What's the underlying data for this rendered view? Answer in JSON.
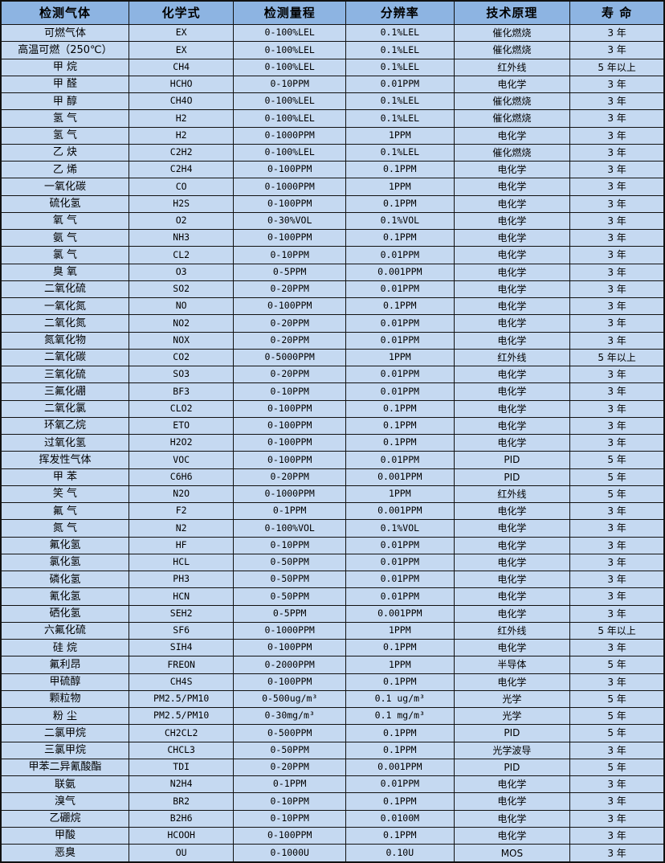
{
  "colors": {
    "header_bg": "#8DB4E2",
    "row_bg": "#C5D9F1",
    "border": "#111111"
  },
  "table": {
    "headers": [
      "检测气体",
      "化学式",
      "检测量程",
      "分辨率",
      "技术原理",
      "寿 命"
    ],
    "rows": [
      [
        "可燃气体",
        "EX",
        "0-100%LEL",
        "0.1%LEL",
        "催化燃烧",
        "3 年"
      ],
      [
        "高温可燃（250℃）",
        "EX",
        "0-100%LEL",
        "0.1%LEL",
        "催化燃烧",
        "3 年"
      ],
      [
        "甲 烷",
        "CH4",
        "0-100%LEL",
        "0.1%LEL",
        "红外线",
        "5 年以上"
      ],
      [
        "甲 醛",
        "HCHO",
        "0-10PPM",
        "0.01PPM",
        "电化学",
        "3 年"
      ],
      [
        "甲 醇",
        "CH4O",
        "0-100%LEL",
        "0.1%LEL",
        "催化燃烧",
        "3 年"
      ],
      [
        "氢 气",
        "H2",
        "0-100%LEL",
        "0.1%LEL",
        "催化燃烧",
        "3 年"
      ],
      [
        "氢 气",
        "H2",
        "0-1000PPM",
        "1PPM",
        "电化学",
        "3 年"
      ],
      [
        "乙 炔",
        "C2H2",
        "0-100%LEL",
        "0.1%LEL",
        "催化燃烧",
        "3 年"
      ],
      [
        "乙 烯",
        "C2H4",
        "0-100PPM",
        "0.1PPM",
        "电化学",
        "3 年"
      ],
      [
        "一氧化碳",
        "CO",
        "0-1000PPM",
        "1PPM",
        "电化学",
        "3 年"
      ],
      [
        "硫化氢",
        "H2S",
        "0-100PPM",
        "0.1PPM",
        "电化学",
        "3 年"
      ],
      [
        "氧 气",
        "O2",
        "0-30%VOL",
        "0.1%VOL",
        "电化学",
        "3 年"
      ],
      [
        "氨 气",
        "NH3",
        "0-100PPM",
        "0.1PPM",
        "电化学",
        "3 年"
      ],
      [
        "氯 气",
        "CL2",
        "0-10PPM",
        "0.01PPM",
        "电化学",
        "3 年"
      ],
      [
        "臭 氧",
        "O3",
        "0-5PPM",
        "0.001PPM",
        "电化学",
        "3 年"
      ],
      [
        "二氧化硫",
        "SO2",
        "0-20PPM",
        "0.01PPM",
        "电化学",
        "3 年"
      ],
      [
        "一氧化氮",
        "NO",
        "0-100PPM",
        "0.1PPM",
        "电化学",
        "3 年"
      ],
      [
        "二氧化氮",
        "NO2",
        "0-20PPM",
        "0.01PPM",
        "电化学",
        "3 年"
      ],
      [
        "氮氧化物",
        "NOX",
        "0-20PPM",
        "0.01PPM",
        "电化学",
        "3 年"
      ],
      [
        "二氧化碳",
        "CO2",
        "0-5000PPM",
        "1PPM",
        "红外线",
        "5 年以上"
      ],
      [
        "三氧化硫",
        "SO3",
        "0-20PPM",
        "0.01PPM",
        "电化学",
        "3 年"
      ],
      [
        "三氟化硼",
        "BF3",
        "0-10PPM",
        "0.01PPM",
        "电化学",
        "3 年"
      ],
      [
        "二氧化氯",
        "CLO2",
        "0-100PPM",
        "0.1PPM",
        "电化学",
        "3 年"
      ],
      [
        "环氧乙烷",
        "ETO",
        "0-100PPM",
        "0.1PPM",
        "电化学",
        "3 年"
      ],
      [
        "过氧化氢",
        "H2O2",
        "0-100PPM",
        "0.1PPM",
        "电化学",
        "3 年"
      ],
      [
        "挥发性气体",
        "VOC",
        "0-100PPM",
        "0.01PPM",
        "PID",
        "5 年"
      ],
      [
        "甲 苯",
        "C6H6",
        "0-20PPM",
        "0.001PPM",
        "PID",
        "5 年"
      ],
      [
        "笑 气",
        "N2O",
        "0-1000PPM",
        "1PPM",
        "红外线",
        "5 年"
      ],
      [
        "氟 气",
        "F2",
        "0-1PPM",
        "0.001PPM",
        "电化学",
        "3 年"
      ],
      [
        "氮 气",
        "N2",
        "0-100%VOL",
        "0.1%VOL",
        "电化学",
        "3 年"
      ],
      [
        "氟化氢",
        "HF",
        "0-10PPM",
        "0.01PPM",
        "电化学",
        "3 年"
      ],
      [
        "氯化氢",
        "HCL",
        "0-50PPM",
        "0.01PPM",
        "电化学",
        "3 年"
      ],
      [
        "磷化氢",
        "PH3",
        "0-50PPM",
        "0.01PPM",
        "电化学",
        "3 年"
      ],
      [
        "氰化氢",
        "HCN",
        "0-50PPM",
        "0.01PPM",
        "电化学",
        "3 年"
      ],
      [
        "硒化氢",
        "SEH2",
        "0-5PPM",
        "0.001PPM",
        "电化学",
        "3 年"
      ],
      [
        "六氟化硫",
        "SF6",
        "0-1000PPM",
        "1PPM",
        "红外线",
        "5 年以上"
      ],
      [
        "硅 烷",
        "SIH4",
        "0-100PPM",
        "0.1PPM",
        "电化学",
        "3 年"
      ],
      [
        "氟利昂",
        "FREON",
        "0-2000PPM",
        "1PPM",
        "半导体",
        "5 年"
      ],
      [
        "甲硫醇",
        "CH4S",
        "0-100PPM",
        "0.1PPM",
        "电化学",
        "3 年"
      ],
      [
        "颗粒物",
        "PM2.5/PM10",
        "0-500ug/m³",
        "0.1 ug/m³",
        "光学",
        "5 年"
      ],
      [
        "粉 尘",
        "PM2.5/PM10",
        "0-30mg/m³",
        "0.1 mg/m³",
        "光学",
        "5 年"
      ],
      [
        "二氯甲烷",
        "CH2CL2",
        "0-500PPM",
        "0.1PPM",
        "PID",
        "5 年"
      ],
      [
        "三氯甲烷",
        "CHCL3",
        "0-50PPM",
        "0.1PPM",
        "光学波导",
        "3 年"
      ],
      [
        "甲苯二异氰酸酯",
        "TDI",
        "0-20PPM",
        "0.001PPM",
        "PID",
        "5 年"
      ],
      [
        "联氨",
        "N2H4",
        "0-1PPM",
        "0.01PPM",
        "电化学",
        "3 年"
      ],
      [
        "溴气",
        "BR2",
        "0-10PPM",
        "0.1PPM",
        "电化学",
        "3 年"
      ],
      [
        "乙硼烷",
        "B2H6",
        "0-10PPM",
        "0.0100M",
        "电化学",
        "3 年"
      ],
      [
        "甲酸",
        "HCOOH",
        "0-100PPM",
        "0.1PPM",
        "电化学",
        "3 年"
      ],
      [
        "恶臭",
        "OU",
        "0-1000U",
        "0.10U",
        "MOS",
        "3 年"
      ]
    ]
  }
}
